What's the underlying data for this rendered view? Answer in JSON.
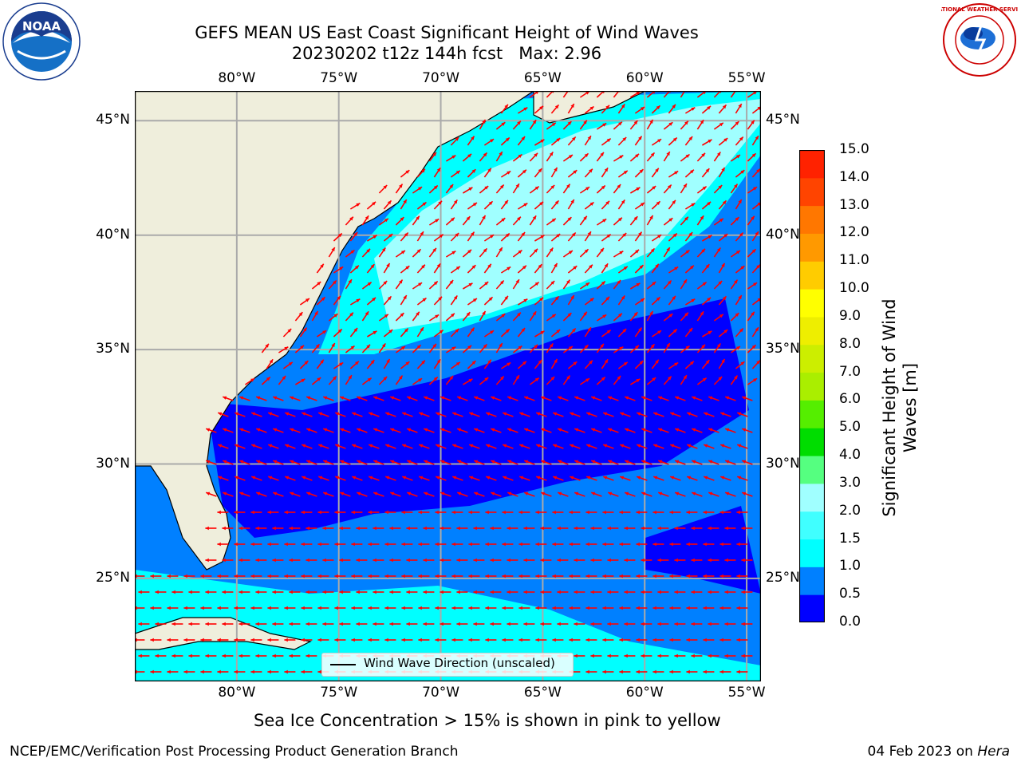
{
  "header": {
    "title_line1": "GEFS MEAN US East Coast Significant Height of Wind Waves",
    "title_line2": "20230202 t12z 144h fcst   Max: 2.96"
  },
  "logos": {
    "left": {
      "name": "noaa-logo",
      "text": "NOAA"
    },
    "right": {
      "name": "national-weather-service-logo",
      "text": "NATIONAL WEATHER SERVICE"
    }
  },
  "map": {
    "lon_labels": [
      "80°W",
      "75°W",
      "70°W",
      "65°W",
      "60°W",
      "55°W"
    ],
    "lat_labels": [
      "45°N",
      "40°N",
      "35°N",
      "30°N",
      "25°N"
    ],
    "lon_values": [
      -80,
      -75,
      -70,
      -65,
      -60,
      -55
    ],
    "lat_values": [
      45,
      40,
      35,
      30,
      25
    ],
    "extent": {
      "lon": [
        -85,
        -54.3
      ],
      "lat": [
        20.5,
        46.3
      ]
    },
    "colors": {
      "land": "#efeedc",
      "grid": "#aaaaaa",
      "arrow": "#ff0000",
      "coast": "#000000"
    },
    "legend_label": "Wind Wave Direction (unscaled)"
  },
  "colorbar": {
    "label": "Significant Height of Wind Waves [m]",
    "ticks": [
      "0.0",
      "0.5",
      "1.0",
      "1.5",
      "2.0",
      "3.0",
      "4.0",
      "5.0",
      "6.0",
      "7.0",
      "8.0",
      "9.0",
      "10.0",
      "11.0",
      "12.0",
      "13.0",
      "14.0",
      "15.0"
    ],
    "colors": [
      "#0000ff",
      "#0080ff",
      "#00ffff",
      "#40ffff",
      "#a0ffff",
      "#55ff80",
      "#00dd00",
      "#55ee00",
      "#aaee00",
      "#ccee00",
      "#eeee00",
      "#ffff00",
      "#ffcc00",
      "#ff9900",
      "#ff7700",
      "#ff4400",
      "#ff2200"
    ]
  },
  "notes": {
    "sea_ice": "Sea Ice Concentration > 15% is shown in pink to yellow"
  },
  "footer": {
    "left": "NCEP/EMC/Verification Post Processing Product Generation Branch",
    "right_date": "04 Feb 2023 on ",
    "right_machine": "Hera"
  }
}
